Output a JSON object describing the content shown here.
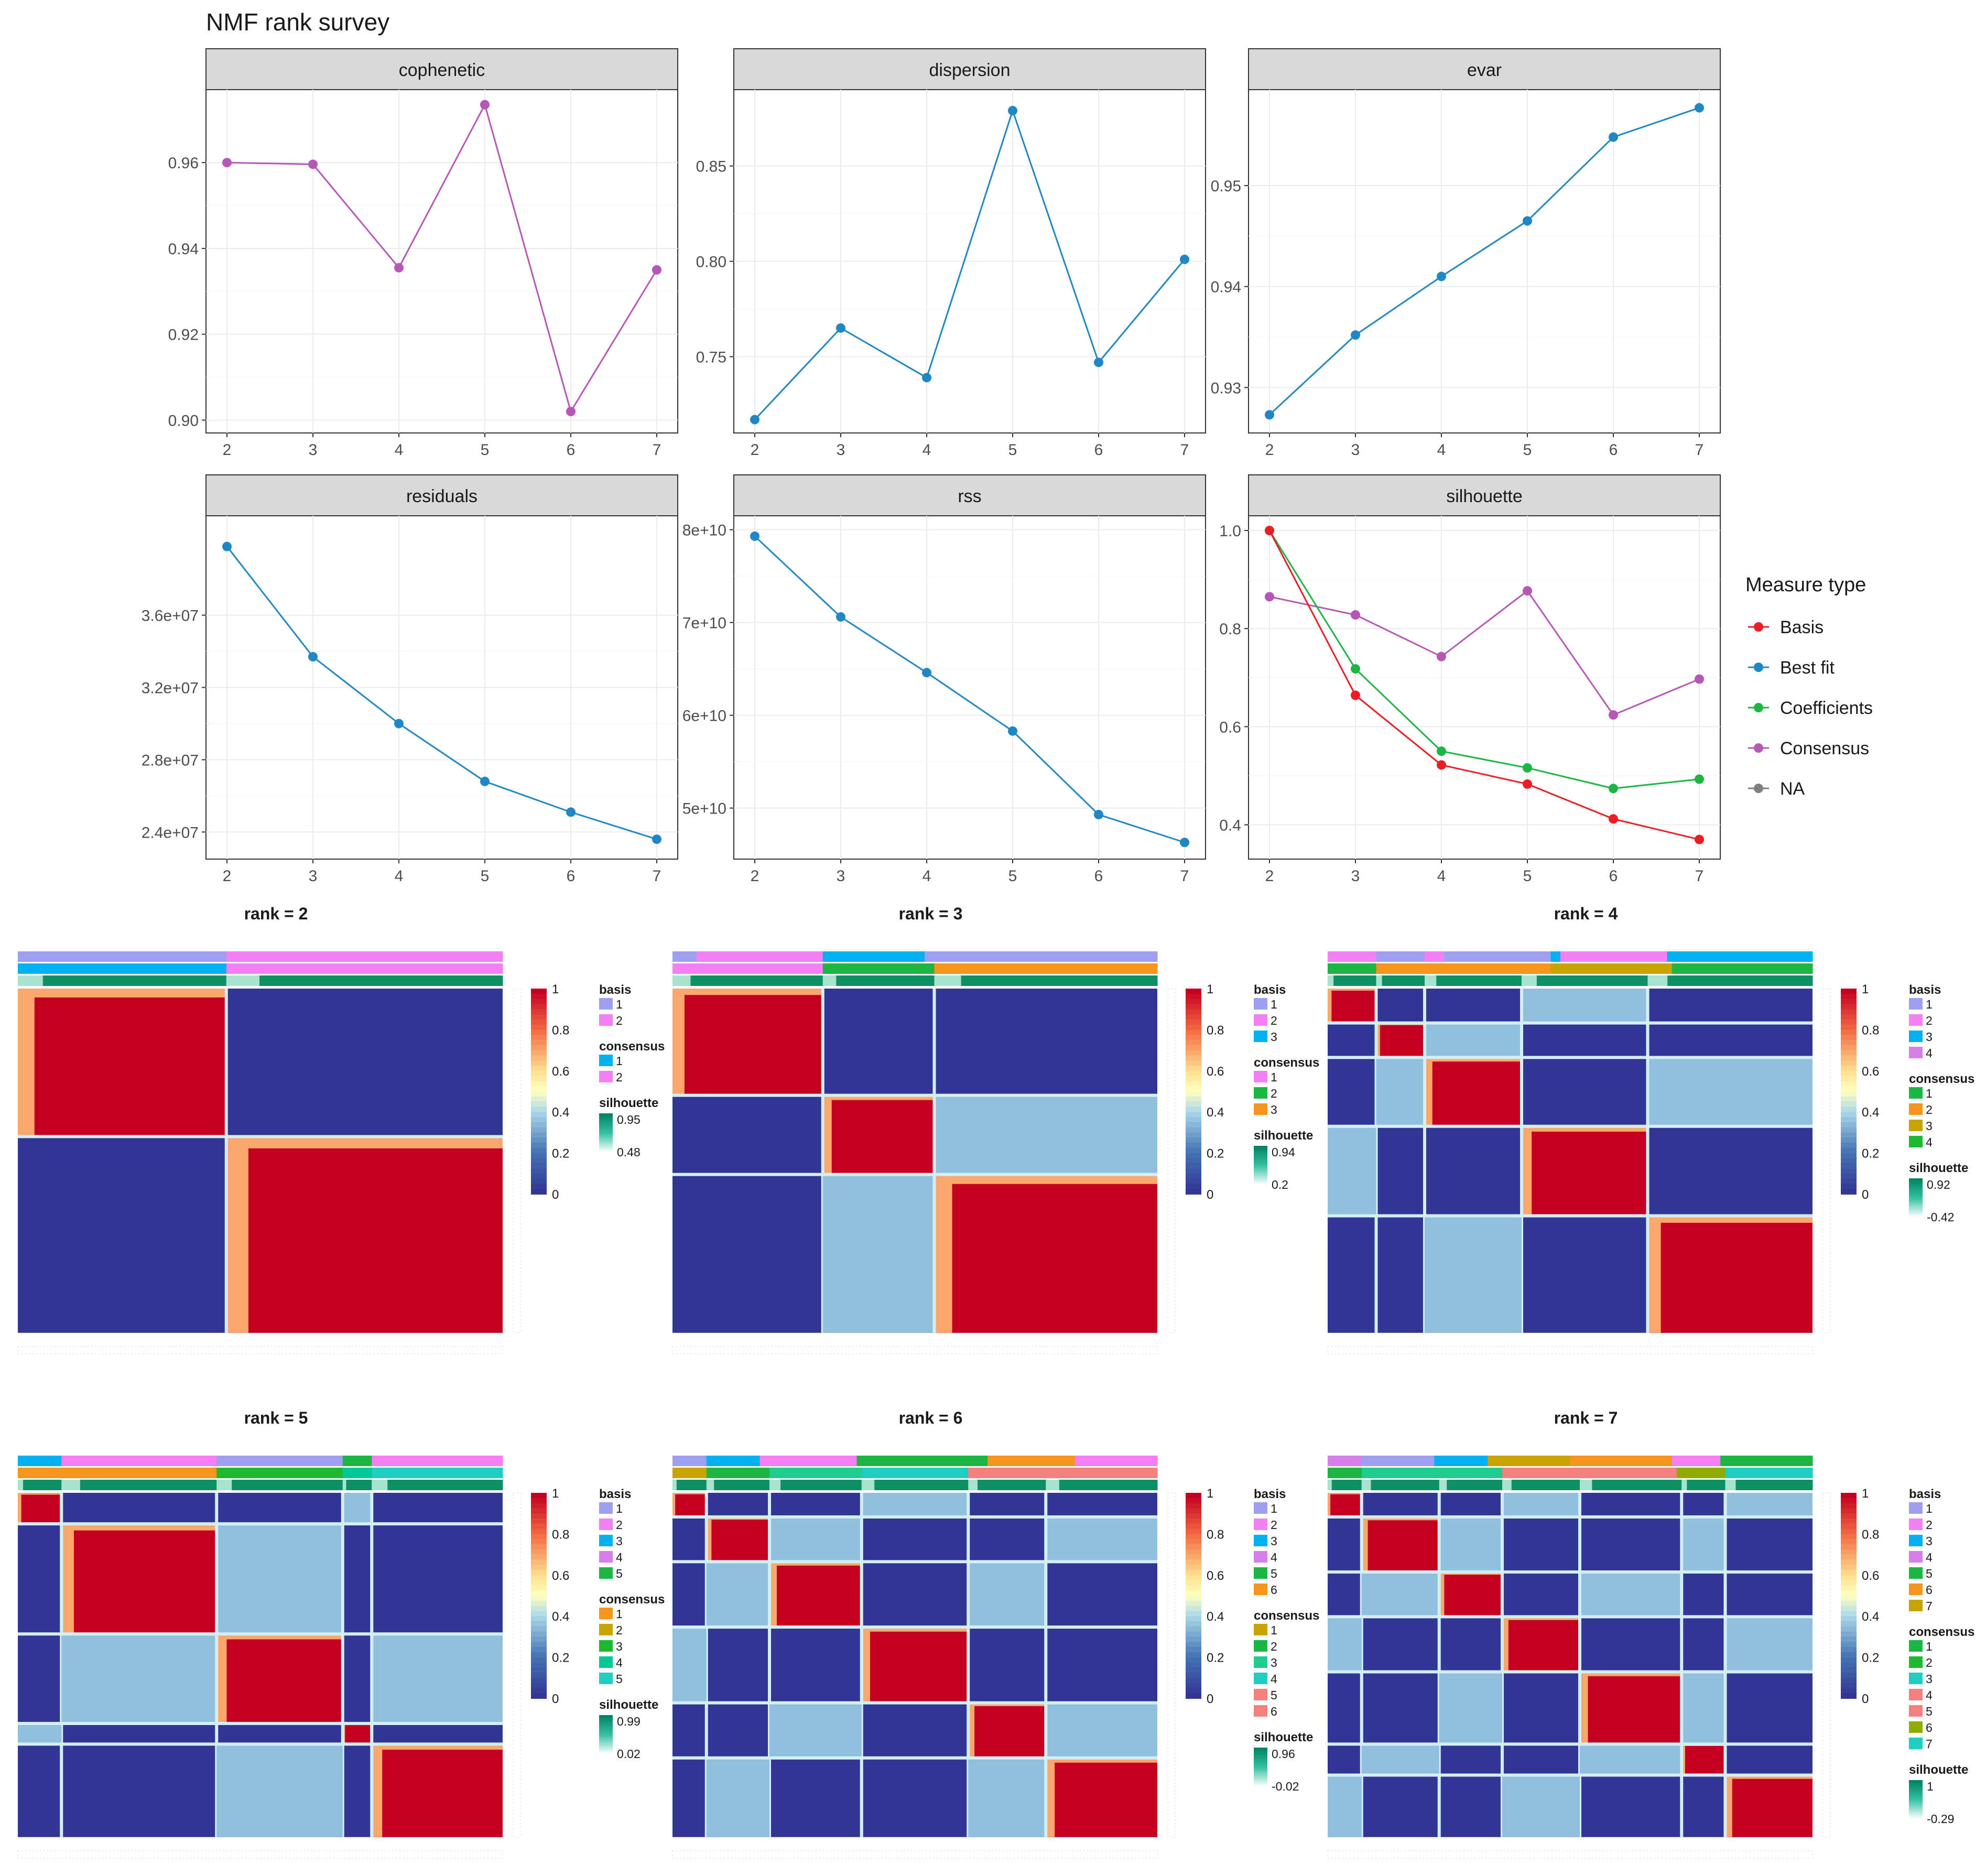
{
  "colors": {
    "best_fit": "#1f88c4",
    "consensus": "#b657b7",
    "basis": "#ee1c25",
    "coefficients": "#1bb543",
    "na": "#7f7f7f",
    "strip_bg": "#d9d9d9",
    "grid": "#ebebeb",
    "heat_low": "#313695",
    "heat_mid": "#ffffbf",
    "heat_high": "#c40022"
  },
  "chart_data": [
    {
      "type": "line",
      "title": "NMF rank survey",
      "panels": [
        {
          "name": "cophenetic",
          "x": [
            2,
            3,
            4,
            5,
            6,
            7
          ],
          "ylim": [
            0.897,
            0.977
          ],
          "yticks": [
            "0.90",
            "0.92",
            "0.94",
            "0.96"
          ],
          "ytick_values": [
            0.9,
            0.92,
            0.94,
            0.96
          ],
          "series": [
            {
              "name": "Consensus",
              "values": [
                0.96,
                0.9596,
                0.9355,
                0.9735,
                0.902,
                0.935
              ]
            }
          ]
        },
        {
          "name": "dispersion",
          "x": [
            2,
            3,
            4,
            5,
            6,
            7
          ],
          "ylim": [
            0.71,
            0.89
          ],
          "yticks": [
            "0.75",
            "0.80",
            "0.85"
          ],
          "ytick_values": [
            0.75,
            0.8,
            0.85
          ],
          "series": [
            {
              "name": "Best fit",
              "values": [
                0.717,
                0.765,
                0.739,
                0.879,
                0.747,
                0.801
              ]
            }
          ]
        },
        {
          "name": "evar",
          "x": [
            2,
            3,
            4,
            5,
            6,
            7
          ],
          "ylim": [
            0.9255,
            0.9595
          ],
          "yticks": [
            "0.93",
            "0.94",
            "0.95"
          ],
          "ytick_values": [
            0.93,
            0.94,
            0.95
          ],
          "series": [
            {
              "name": "Best fit",
              "values": [
                0.9273,
                0.9352,
                0.941,
                0.9465,
                0.9548,
                0.9577
              ]
            }
          ]
        },
        {
          "name": "residuals",
          "x": [
            2,
            3,
            4,
            5,
            6,
            7
          ],
          "ylim": [
            22500000,
            41500000
          ],
          "yticks": [
            "2.4e+07",
            "2.8e+07",
            "3.2e+07",
            "3.6e+07"
          ],
          "ytick_values": [
            24000000,
            28000000,
            32000000,
            36000000
          ],
          "series": [
            {
              "name": "Best fit",
              "values": [
                39800000,
                33700000,
                30000000,
                26800000,
                25100000,
                23600000
              ]
            }
          ]
        },
        {
          "name": "rss",
          "x": [
            2,
            3,
            4,
            5,
            6,
            7
          ],
          "ylim": [
            44500000000,
            81500000000
          ],
          "yticks": [
            "5e+10",
            "6e+10",
            "7e+10",
            "8e+10"
          ],
          "ytick_values": [
            50000000000,
            60000000000,
            70000000000,
            80000000000
          ],
          "series": [
            {
              "name": "Best fit",
              "values": [
                79300000000,
                70600000000,
                64600000000,
                58300000000,
                49300000000,
                46300000000
              ]
            }
          ]
        },
        {
          "name": "silhouette",
          "x": [
            2,
            3,
            4,
            5,
            6,
            7
          ],
          "ylim": [
            0.33,
            1.03
          ],
          "yticks": [
            "0.4",
            "0.6",
            "0.8",
            "1.0"
          ],
          "ytick_values": [
            0.4,
            0.6,
            0.8,
            1.0
          ],
          "series": [
            {
              "name": "Consensus",
              "values": [
                0.865,
                0.828,
                0.743,
                0.877,
                0.624,
                0.697
              ]
            },
            {
              "name": "Coefficients",
              "values": [
                1.0,
                0.718,
                0.55,
                0.516,
                0.474,
                0.493
              ]
            },
            {
              "name": "Basis",
              "values": [
                1.0,
                0.664,
                0.522,
                0.483,
                0.412,
                0.37
              ]
            }
          ]
        }
      ],
      "legend": {
        "title": "Measure type",
        "placement": "right",
        "entries": [
          {
            "label": "Basis",
            "color_key": "basis"
          },
          {
            "label": "Best fit",
            "color_key": "best_fit"
          },
          {
            "label": "Coefficients",
            "color_key": "coefficients"
          },
          {
            "label": "Consensus",
            "color_key": "consensus"
          },
          {
            "label": "NA",
            "color_key": "na"
          }
        ]
      }
    },
    {
      "type": "heatmap",
      "maps": [
        {
          "title": "rank =  2",
          "rank": 2,
          "blocks": [
            0.43,
            0.57
          ],
          "basis_segments": [
            {
              "f": 0.43,
              "c": "#9e9ff0"
            },
            {
              "f": 0.57,
              "c": "#f57ff5"
            }
          ],
          "consensus_segments": [
            {
              "f": 0.43,
              "c": "#00b0f0"
            },
            {
              "f": 0.57,
              "c": "#f57ff5"
            }
          ],
          "colorbar_ticks": [
            "1",
            "0.8",
            "0.6",
            "0.4",
            "0.2",
            "0"
          ],
          "legend": {
            "basis_title": "basis",
            "basis_labels": [
              "1",
              "2"
            ],
            "basis_colors": [
              "#9e9ff0",
              "#f57ff5"
            ],
            "consensus_title": "consensus",
            "consensus_labels": [
              "1",
              "2"
            ],
            "consensus_colors": [
              "#00b0f0",
              "#f57ff5"
            ],
            "silhouette_title": "silhouette",
            "silhouette_max": "0.95",
            "silhouette_min": "0.48"
          }
        },
        {
          "title": "rank =  3",
          "rank": 3,
          "blocks": [
            0.31,
            0.23,
            0.46
          ],
          "basis_segments": [
            {
              "f": 0.05,
              "c": "#9e9ff0"
            },
            {
              "f": 0.26,
              "c": "#f57ff5"
            },
            {
              "f": 0.06,
              "c": "#00b0f0"
            },
            {
              "f": 0.15,
              "c": "#00b0f0"
            },
            {
              "f": 0.48,
              "c": "#9e9ff0"
            }
          ],
          "consensus_segments": [
            {
              "f": 0.31,
              "c": "#f57ff5"
            },
            {
              "f": 0.23,
              "c": "#1bb543"
            },
            {
              "f": 0.46,
              "c": "#f7941d"
            }
          ],
          "colorbar_ticks": [
            "1",
            "0.8",
            "0.6",
            "0.4",
            "0.2",
            "0"
          ],
          "legend": {
            "basis_title": "basis",
            "basis_labels": [
              "1",
              "2",
              "3"
            ],
            "basis_colors": [
              "#9e9ff0",
              "#f57ff5",
              "#00b0f0"
            ],
            "consensus_title": "consensus",
            "consensus_labels": [
              "1",
              "2",
              "3"
            ],
            "consensus_colors": [
              "#f57ff5",
              "#1bb543",
              "#f7941d"
            ],
            "silhouette_title": "silhouette",
            "silhouette_max": "0.94",
            "silhouette_min": "0.2"
          }
        },
        {
          "title": "rank =  4",
          "rank": 4,
          "blocks": [
            0.1,
            0.1,
            0.2,
            0.26,
            0.34
          ],
          "basis_segments": [
            {
              "f": 0.1,
              "c": "#f57ff5"
            },
            {
              "f": 0.1,
              "c": "#9e9ff0"
            },
            {
              "f": 0.04,
              "c": "#f57ff5"
            },
            {
              "f": 0.22,
              "c": "#9e9ff0"
            },
            {
              "f": 0.02,
              "c": "#00b0f0"
            },
            {
              "f": 0.22,
              "c": "#f57ff5"
            },
            {
              "f": 0.3,
              "c": "#00b0f0"
            }
          ],
          "consensus_segments": [
            {
              "f": 0.1,
              "c": "#1bb543"
            },
            {
              "f": 0.36,
              "c": "#f7941d"
            },
            {
              "f": 0.25,
              "c": "#c9a400"
            },
            {
              "f": 0.29,
              "c": "#1bb543"
            }
          ],
          "colorbar_ticks": [
            "1",
            "0.8",
            "0.6",
            "0.4",
            "0.2",
            "0"
          ],
          "legend": {
            "basis_title": "basis",
            "basis_labels": [
              "1",
              "2",
              "3",
              "4"
            ],
            "basis_colors": [
              "#9e9ff0",
              "#f57ff5",
              "#00b0f0",
              "#d67fe8"
            ],
            "consensus_title": "consensus",
            "consensus_labels": [
              "1",
              "2",
              "3",
              "4"
            ],
            "consensus_colors": [
              "#1bb543",
              "#f7941d",
              "#c9a400",
              "#1db82e"
            ],
            "silhouette_title": "silhouette",
            "silhouette_max": "0.92",
            "silhouette_min": "-0.42"
          }
        },
        {
          "title": "rank =  5",
          "rank": 5,
          "blocks": [
            0.09,
            0.32,
            0.26,
            0.06,
            0.27
          ],
          "basis_segments": [
            {
              "f": 0.09,
              "c": "#00b0f0"
            },
            {
              "f": 0.32,
              "c": "#f57ff5"
            },
            {
              "f": 0.26,
              "c": "#9e9ff0"
            },
            {
              "f": 0.06,
              "c": "#1bb543"
            },
            {
              "f": 0.27,
              "c": "#f57ff5"
            }
          ],
          "consensus_segments": [
            {
              "f": 0.41,
              "c": "#f7941d"
            },
            {
              "f": 0.26,
              "c": "#1db82e"
            },
            {
              "f": 0.06,
              "c": "#00c896"
            },
            {
              "f": 0.27,
              "c": "#1ecec0"
            }
          ],
          "colorbar_ticks": [
            "1",
            "0.8",
            "0.6",
            "0.4",
            "0.2",
            "0"
          ],
          "legend": {
            "basis_title": "basis",
            "basis_labels": [
              "1",
              "2",
              "3",
              "4",
              "5"
            ],
            "basis_colors": [
              "#9e9ff0",
              "#f57ff5",
              "#00b0f0",
              "#d67fe8",
              "#1bb543"
            ],
            "consensus_title": "consensus",
            "consensus_labels": [
              "1",
              "2",
              "3",
              "4",
              "5"
            ],
            "consensus_colors": [
              "#f7941d",
              "#c9a400",
              "#1db82e",
              "#00c896",
              "#1ecec0"
            ],
            "silhouette_title": "silhouette",
            "silhouette_max": "0.99",
            "silhouette_min": "0.02"
          }
        },
        {
          "title": "rank =  6",
          "rank": 6,
          "blocks": [
            0.07,
            0.13,
            0.19,
            0.22,
            0.16,
            0.23
          ],
          "basis_segments": [
            {
              "f": 0.07,
              "c": "#9e9ff0"
            },
            {
              "f": 0.11,
              "c": "#00b0f0"
            },
            {
              "f": 0.2,
              "c": "#f57ff5"
            },
            {
              "f": 0.27,
              "c": "#1bb543"
            },
            {
              "f": 0.18,
              "c": "#f7941d"
            },
            {
              "f": 0.17,
              "c": "#f57ff5"
            }
          ],
          "consensus_segments": [
            {
              "f": 0.07,
              "c": "#c9a400"
            },
            {
              "f": 0.13,
              "c": "#1bb543"
            },
            {
              "f": 0.19,
              "c": "#1ecc90"
            },
            {
              "f": 0.22,
              "c": "#1ecec0"
            },
            {
              "f": 0.39,
              "c": "#f48080"
            }
          ],
          "colorbar_ticks": [
            "1",
            "0.8",
            "0.6",
            "0.4",
            "0.2",
            "0"
          ],
          "legend": {
            "basis_title": "basis",
            "basis_labels": [
              "1",
              "2",
              "3",
              "4",
              "5",
              "6"
            ],
            "basis_colors": [
              "#9e9ff0",
              "#f57ff5",
              "#00b0f0",
              "#d67fe8",
              "#1bb543",
              "#f7941d"
            ],
            "consensus_title": "consensus",
            "consensus_labels": [
              "1",
              "2",
              "3",
              "4",
              "5",
              "6"
            ],
            "consensus_colors": [
              "#c9a400",
              "#1bb543",
              "#1ecc90",
              "#1ecec0",
              "#f48080",
              "#f48080"
            ],
            "silhouette_title": "silhouette",
            "silhouette_max": "0.96",
            "silhouette_min": "-0.02"
          }
        },
        {
          "title": "rank =  7",
          "rank": 7,
          "blocks": [
            0.07,
            0.16,
            0.13,
            0.16,
            0.21,
            0.09,
            0.18
          ],
          "basis_segments": [
            {
              "f": 0.07,
              "c": "#d67fe8"
            },
            {
              "f": 0.15,
              "c": "#9e9ff0"
            },
            {
              "f": 0.11,
              "c": "#00b0f0"
            },
            {
              "f": 0.17,
              "c": "#c9a400"
            },
            {
              "f": 0.21,
              "c": "#f7941d"
            },
            {
              "f": 0.1,
              "c": "#f57ff5"
            },
            {
              "f": 0.19,
              "c": "#1bb543"
            }
          ],
          "consensus_segments": [
            {
              "f": 0.07,
              "c": "#1bb543"
            },
            {
              "f": 0.29,
              "c": "#1ecc90"
            },
            {
              "f": 0.36,
              "c": "#f48080"
            },
            {
              "f": 0.1,
              "c": "#8faa00"
            },
            {
              "f": 0.18,
              "c": "#1ecec0"
            }
          ],
          "colorbar_ticks": [
            "1",
            "0.8",
            "0.6",
            "0.4",
            "0.2",
            "0"
          ],
          "legend": {
            "basis_title": "basis",
            "basis_labels": [
              "1",
              "2",
              "3",
              "4",
              "5",
              "6",
              "7"
            ],
            "basis_colors": [
              "#9e9ff0",
              "#f57ff5",
              "#00b0f0",
              "#d67fe8",
              "#1bb543",
              "#f7941d",
              "#c9a400"
            ],
            "consensus_title": "consensus",
            "consensus_labels": [
              "1",
              "2",
              "3",
              "4",
              "5",
              "6",
              "7"
            ],
            "consensus_colors": [
              "#1bb543",
              "#1db82e",
              "#1ecec0",
              "#f48080",
              "#f48080",
              "#8faa00",
              "#1ecec0"
            ],
            "silhouette_title": "silhouette",
            "silhouette_max": "1",
            "silhouette_min": "-0.29"
          }
        }
      ]
    }
  ]
}
